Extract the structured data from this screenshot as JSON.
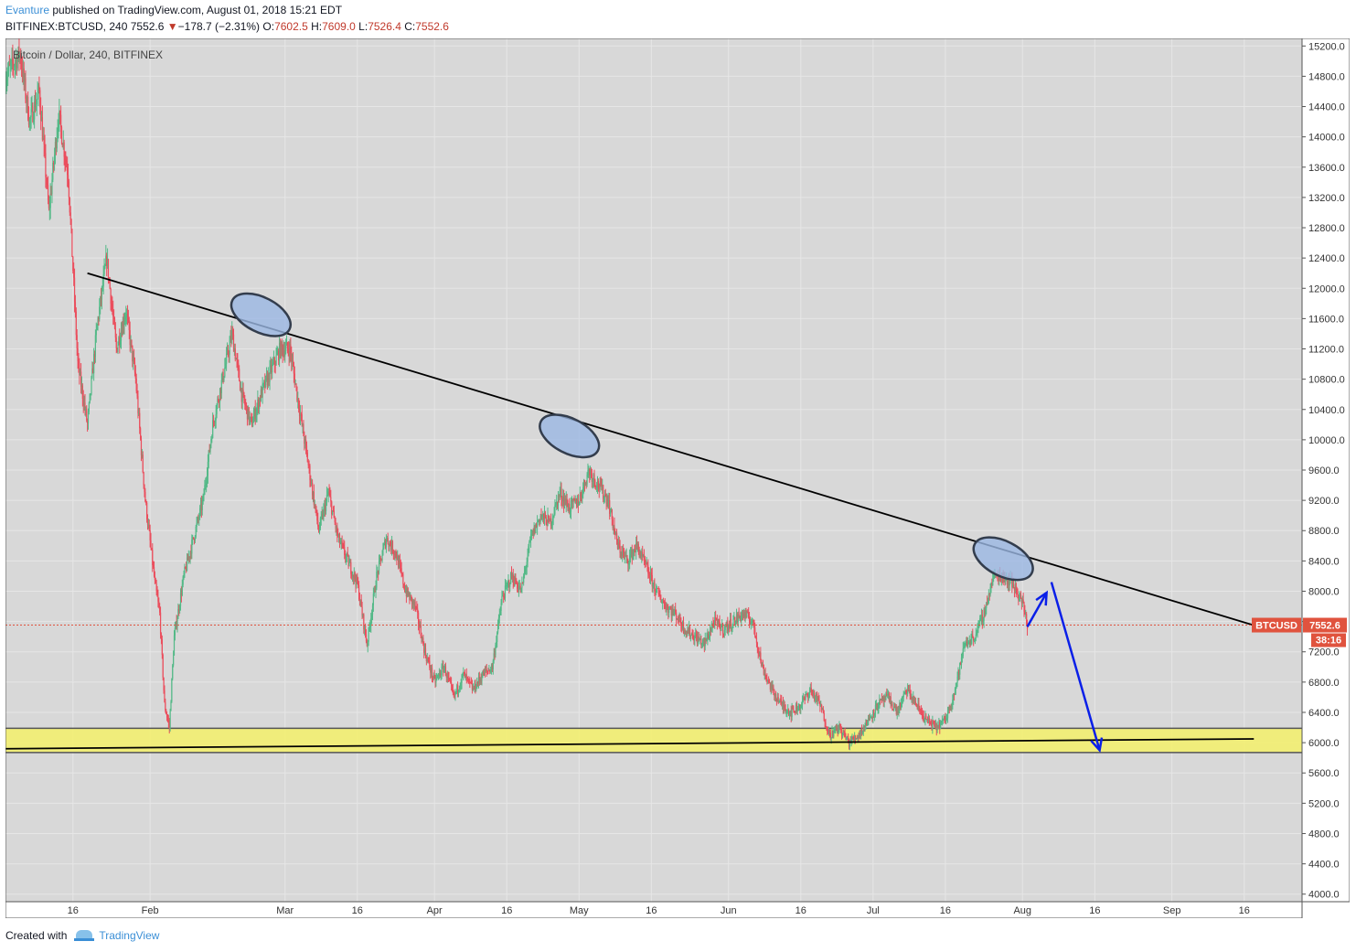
{
  "header": {
    "author": "Evanture",
    "published": "published on TradingView.com, August 01, 2018 15:21 EDT",
    "symbol": "BITFINEX:BTCUSD, 240",
    "last": "7552.6",
    "arrow": "▼",
    "change": "−178.7 (−2.31%)",
    "o_label": "O:",
    "o": "7602.5",
    "h_label": "H:",
    "h": "7609.0",
    "l_label": "L:",
    "l": "7526.4",
    "c_label": "C:",
    "c": "7552.6"
  },
  "footer": {
    "created": "Created with",
    "brand": "TradingView"
  },
  "chart_data": {
    "type": "candlestick",
    "legend": "Bitcoin / Dollar, 240, BITFINEX",
    "ylim": [
      3900,
      15300
    ],
    "y_ticks": [
      "4000.0",
      "4400.0",
      "4800.0",
      "5200.0",
      "5600.0",
      "6000.0",
      "6400.0",
      "6800.0",
      "7200.0",
      "7600.0",
      "8000.0",
      "8400.0",
      "8800.0",
      "9200.0",
      "9600.0",
      "10000.0",
      "10400.0",
      "10800.0",
      "11200.0",
      "11600.0",
      "12000.0",
      "12400.0",
      "12800.0",
      "13200.0",
      "13600.0",
      "14000.0",
      "14400.0",
      "14800.0",
      "15200.0"
    ],
    "x_ticks": [
      {
        "label": "16",
        "day": 15
      },
      {
        "label": "Feb",
        "day": 31
      },
      {
        "label": "Mar",
        "day": 59
      },
      {
        "label": "16",
        "day": 74
      },
      {
        "label": "Apr",
        "day": 90
      },
      {
        "label": "16",
        "day": 105
      },
      {
        "label": "May",
        "day": 120
      },
      {
        "label": "16",
        "day": 135
      },
      {
        "label": "Jun",
        "day": 151
      },
      {
        "label": "16",
        "day": 166
      },
      {
        "label": "Jul",
        "day": 181
      },
      {
        "label": "16",
        "day": 196
      },
      {
        "label": "Aug",
        "day": 212
      },
      {
        "label": "16",
        "day": 227
      },
      {
        "label": "Sep",
        "day": 243
      },
      {
        "label": "16",
        "day": 258
      }
    ],
    "xlim_days": [
      1,
      270
    ],
    "price_path": [
      [
        1,
        14800
      ],
      [
        4,
        15100
      ],
      [
        6,
        14200
      ],
      [
        8,
        14600
      ],
      [
        10,
        13000
      ],
      [
        12,
        14300
      ],
      [
        14,
        13500
      ],
      [
        16,
        11000
      ],
      [
        18,
        10200
      ],
      [
        20,
        11500
      ],
      [
        22,
        12400
      ],
      [
        24,
        11200
      ],
      [
        26,
        11700
      ],
      [
        28,
        10800
      ],
      [
        30,
        9200
      ],
      [
        32,
        8100
      ],
      [
        33,
        7700
      ],
      [
        34,
        6500
      ],
      [
        35,
        6200
      ],
      [
        36,
        7400
      ],
      [
        38,
        8200
      ],
      [
        40,
        8700
      ],
      [
        42,
        9200
      ],
      [
        44,
        10200
      ],
      [
        46,
        10800
      ],
      [
        48,
        11400
      ],
      [
        50,
        10600
      ],
      [
        52,
        10200
      ],
      [
        54,
        10600
      ],
      [
        56,
        10900
      ],
      [
        58,
        11200
      ],
      [
        60,
        11200
      ],
      [
        62,
        10400
      ],
      [
        64,
        9600
      ],
      [
        66,
        8800
      ],
      [
        68,
        9300
      ],
      [
        70,
        8700
      ],
      [
        72,
        8400
      ],
      [
        74,
        8100
      ],
      [
        76,
        7300
      ],
      [
        78,
        8200
      ],
      [
        80,
        8700
      ],
      [
        82,
        8500
      ],
      [
        84,
        8000
      ],
      [
        86,
        7800
      ],
      [
        88,
        7200
      ],
      [
        90,
        6800
      ],
      [
        92,
        7000
      ],
      [
        94,
        6600
      ],
      [
        96,
        6900
      ],
      [
        98,
        6700
      ],
      [
        100,
        6900
      ],
      [
        102,
        7000
      ],
      [
        104,
        7900
      ],
      [
        106,
        8200
      ],
      [
        108,
        8000
      ],
      [
        110,
        8700
      ],
      [
        112,
        9000
      ],
      [
        114,
        8900
      ],
      [
        116,
        9300
      ],
      [
        118,
        9100
      ],
      [
        120,
        9200
      ],
      [
        122,
        9600
      ],
      [
        124,
        9400
      ],
      [
        126,
        9200
      ],
      [
        128,
        8600
      ],
      [
        130,
        8400
      ],
      [
        132,
        8600
      ],
      [
        134,
        8300
      ],
      [
        136,
        8000
      ],
      [
        138,
        7800
      ],
      [
        140,
        7700
      ],
      [
        142,
        7500
      ],
      [
        144,
        7400
      ],
      [
        146,
        7300
      ],
      [
        148,
        7600
      ],
      [
        150,
        7500
      ],
      [
        152,
        7600
      ],
      [
        154,
        7700
      ],
      [
        156,
        7600
      ],
      [
        158,
        7000
      ],
      [
        160,
        6700
      ],
      [
        162,
        6500
      ],
      [
        164,
        6400
      ],
      [
        166,
        6500
      ],
      [
        168,
        6700
      ],
      [
        170,
        6500
      ],
      [
        172,
        6100
      ],
      [
        174,
        6200
      ],
      [
        176,
        6000
      ],
      [
        178,
        6100
      ],
      [
        180,
        6300
      ],
      [
        182,
        6500
      ],
      [
        184,
        6600
      ],
      [
        186,
        6400
      ],
      [
        188,
        6700
      ],
      [
        190,
        6500
      ],
      [
        192,
        6300
      ],
      [
        194,
        6200
      ],
      [
        196,
        6300
      ],
      [
        198,
        6700
      ],
      [
        200,
        7300
      ],
      [
        202,
        7400
      ],
      [
        204,
        7700
      ],
      [
        206,
        8200
      ],
      [
        208,
        8200
      ],
      [
        210,
        8100
      ],
      [
        212,
        7850
      ],
      [
        213,
        7550
      ]
    ],
    "annotations": {
      "resistance_line": {
        "from": [
          18,
          12200
        ],
        "to": [
          260,
          7550
        ]
      },
      "support_line": {
        "from": [
          1,
          5920
        ],
        "to": [
          260,
          6050
        ]
      },
      "support_zone": [
        5870,
        6190
      ],
      "ellipses_at": [
        [
          54,
          11650
        ],
        [
          118,
          10050
        ],
        [
          208,
          8430
        ]
      ],
      "projection_up": {
        "from": [
          213,
          7530
        ],
        "to": [
          217,
          7980
        ]
      },
      "projection_down": {
        "from": [
          218,
          8120
        ],
        "to": [
          228,
          5900
        ]
      },
      "current_price_label": "BTCUSD",
      "current_price": 7552.6,
      "price_value": "7552.6",
      "countdown": "38:16"
    },
    "colors": {
      "up": "#53b987",
      "down": "#eb4d5c",
      "zone": "#f3f071",
      "ellipse": "#9bb8e3",
      "projection": "#0a1fe8",
      "price_tag": "#e0533e"
    }
  }
}
